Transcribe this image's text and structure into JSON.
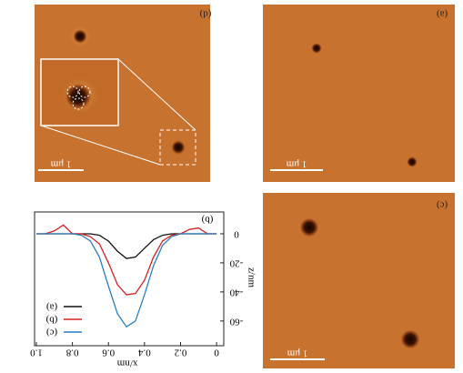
{
  "images": [
    {
      "label": "(d)",
      "scale_bar": "1 μm"
    },
    {
      "label": "(a)",
      "scale_bar": "1 μm"
    },
    {
      "label": "(c)",
      "scale_bar": "1 μm"
    }
  ],
  "chart_data": {
    "type": "line",
    "title": "(b)",
    "x_label": "x/nm",
    "y_label": "z/nm",
    "x": [
      0,
      0.05,
      0.1,
      0.15,
      0.2,
      0.25,
      0.3,
      0.35,
      0.4,
      0.45,
      0.5,
      0.55,
      0.6,
      0.65,
      0.7,
      0.75,
      0.8,
      0.85,
      0.9,
      0.95,
      1.0
    ],
    "series": [
      {
        "name": "(a)",
        "color": "#111111",
        "values": [
          0,
          0,
          0,
          0,
          0,
          0,
          -1,
          -4,
          -10,
          -16,
          -17,
          -12,
          -5,
          -1,
          0,
          0,
          0,
          0,
          0,
          0,
          0
        ]
      },
      {
        "name": "(b)",
        "color": "#d62020",
        "values": [
          0,
          0,
          4,
          3,
          0,
          -1,
          -5,
          -16,
          -32,
          -41,
          -42,
          -35,
          -20,
          -7,
          -2,
          0,
          0,
          6,
          2,
          0,
          0
        ]
      },
      {
        "name": "(c)",
        "color": "#2a7fc0",
        "values": [
          0,
          0,
          0,
          0,
          0,
          -2,
          -8,
          -22,
          -42,
          -60,
          -64,
          -55,
          -36,
          -16,
          -5,
          -1,
          0,
          0,
          0,
          0,
          0
        ]
      }
    ],
    "xlim": [
      1.01,
      -0.04
    ],
    "ylim": [
      15,
      -77
    ],
    "xticks": [
      0,
      0.2,
      0.4,
      0.6,
      0.8,
      {
        "value": 1,
        "label": "1.0"
      }
    ],
    "yticks": [
      0,
      -20,
      -40,
      -60
    ]
  }
}
